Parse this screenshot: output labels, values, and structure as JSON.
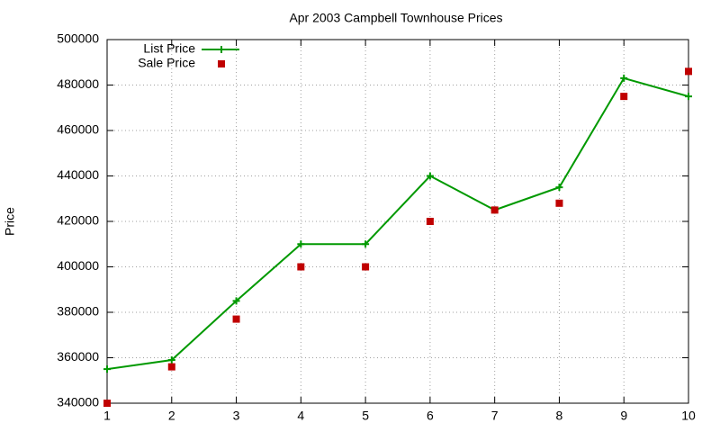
{
  "chart_data": {
    "type": "line",
    "title": "Apr 2003 Campbell Townhouse Prices",
    "y_label": "Price",
    "x": [
      1,
      2,
      3,
      4,
      5,
      6,
      7,
      8,
      9,
      10
    ],
    "series": [
      {
        "name": "List Price",
        "color": "#009900",
        "mode": "linespoints",
        "values": [
          355000,
          359000,
          385000,
          410000,
          410000,
          440000,
          425000,
          435000,
          483000,
          475000
        ]
      },
      {
        "name": "Sale Price",
        "color": "#c00000",
        "mode": "points",
        "values": [
          340000,
          356000,
          377000,
          400000,
          400000,
          420000,
          425000,
          428000,
          475000,
          486000
        ]
      }
    ],
    "xlim": [
      1,
      10
    ],
    "xticks": [
      1,
      2,
      3,
      4,
      5,
      6,
      7,
      8,
      9,
      10
    ],
    "ylim": [
      340000,
      500000
    ],
    "yticks": [
      340000,
      360000,
      380000,
      400000,
      420000,
      440000,
      460000,
      480000,
      500000
    ],
    "grid": true,
    "legend": "top-left"
  }
}
